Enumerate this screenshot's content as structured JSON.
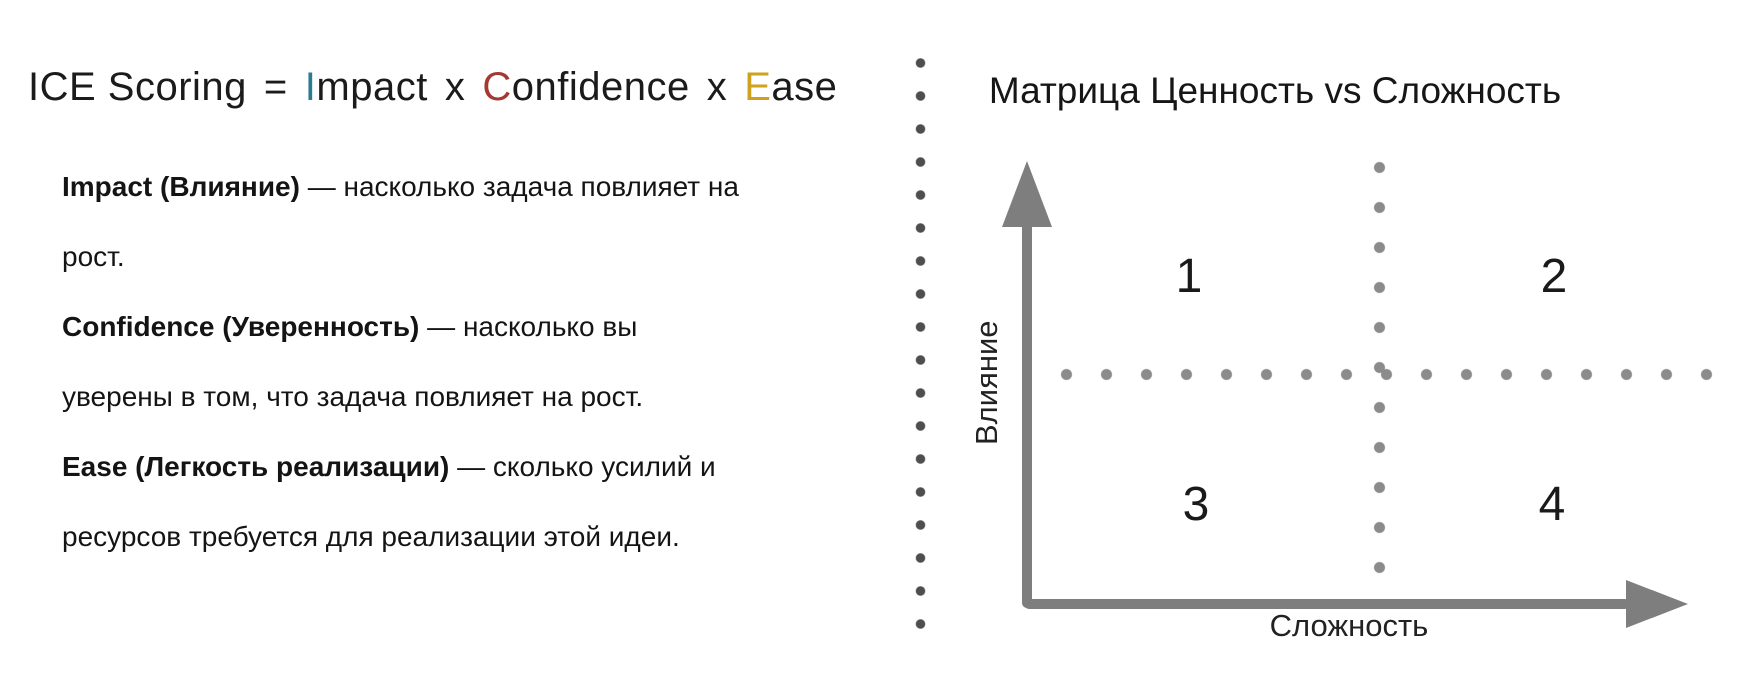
{
  "ice": {
    "title": {
      "lead": "ICE Scoring",
      "equals": "=",
      "times": "x",
      "terms": [
        {
          "initial": "I",
          "rest": "mpact",
          "color": "#2C7C90"
        },
        {
          "initial": "C",
          "rest": "onfidence",
          "color": "#A43931"
        },
        {
          "initial": "E",
          "rest": "ase",
          "color": "#CEA11F"
        }
      ]
    },
    "definitions": [
      {
        "term": "Impact (Влияние)",
        "rest": " — насколько задача повлияет на рост."
      },
      {
        "term": "Confidence (Уверенность)",
        "rest": " — насколько вы уверены в том, что задача повлияет на рост."
      },
      {
        "term": "Ease (Легкость реализации)",
        "rest": " — сколько усилий и ресурсов требуется для реализации этой идеи."
      }
    ]
  },
  "matrix": {
    "title": "Матрица Ценность vs Сложность",
    "y_axis_label": "Влияние",
    "x_axis_label": "Сложность",
    "quadrant_labels": [
      "1",
      "2",
      "3",
      "4"
    ]
  },
  "colors": {
    "text": "#111111",
    "axis_gray": "#7E7E7E",
    "grid_dot_gray": "#8B8B8B",
    "divider_dot_gray": "#4E4E4E",
    "impact_accent": "#2C7C90",
    "confidence_accent": "#A43931",
    "ease_accent": "#CEA11F"
  }
}
